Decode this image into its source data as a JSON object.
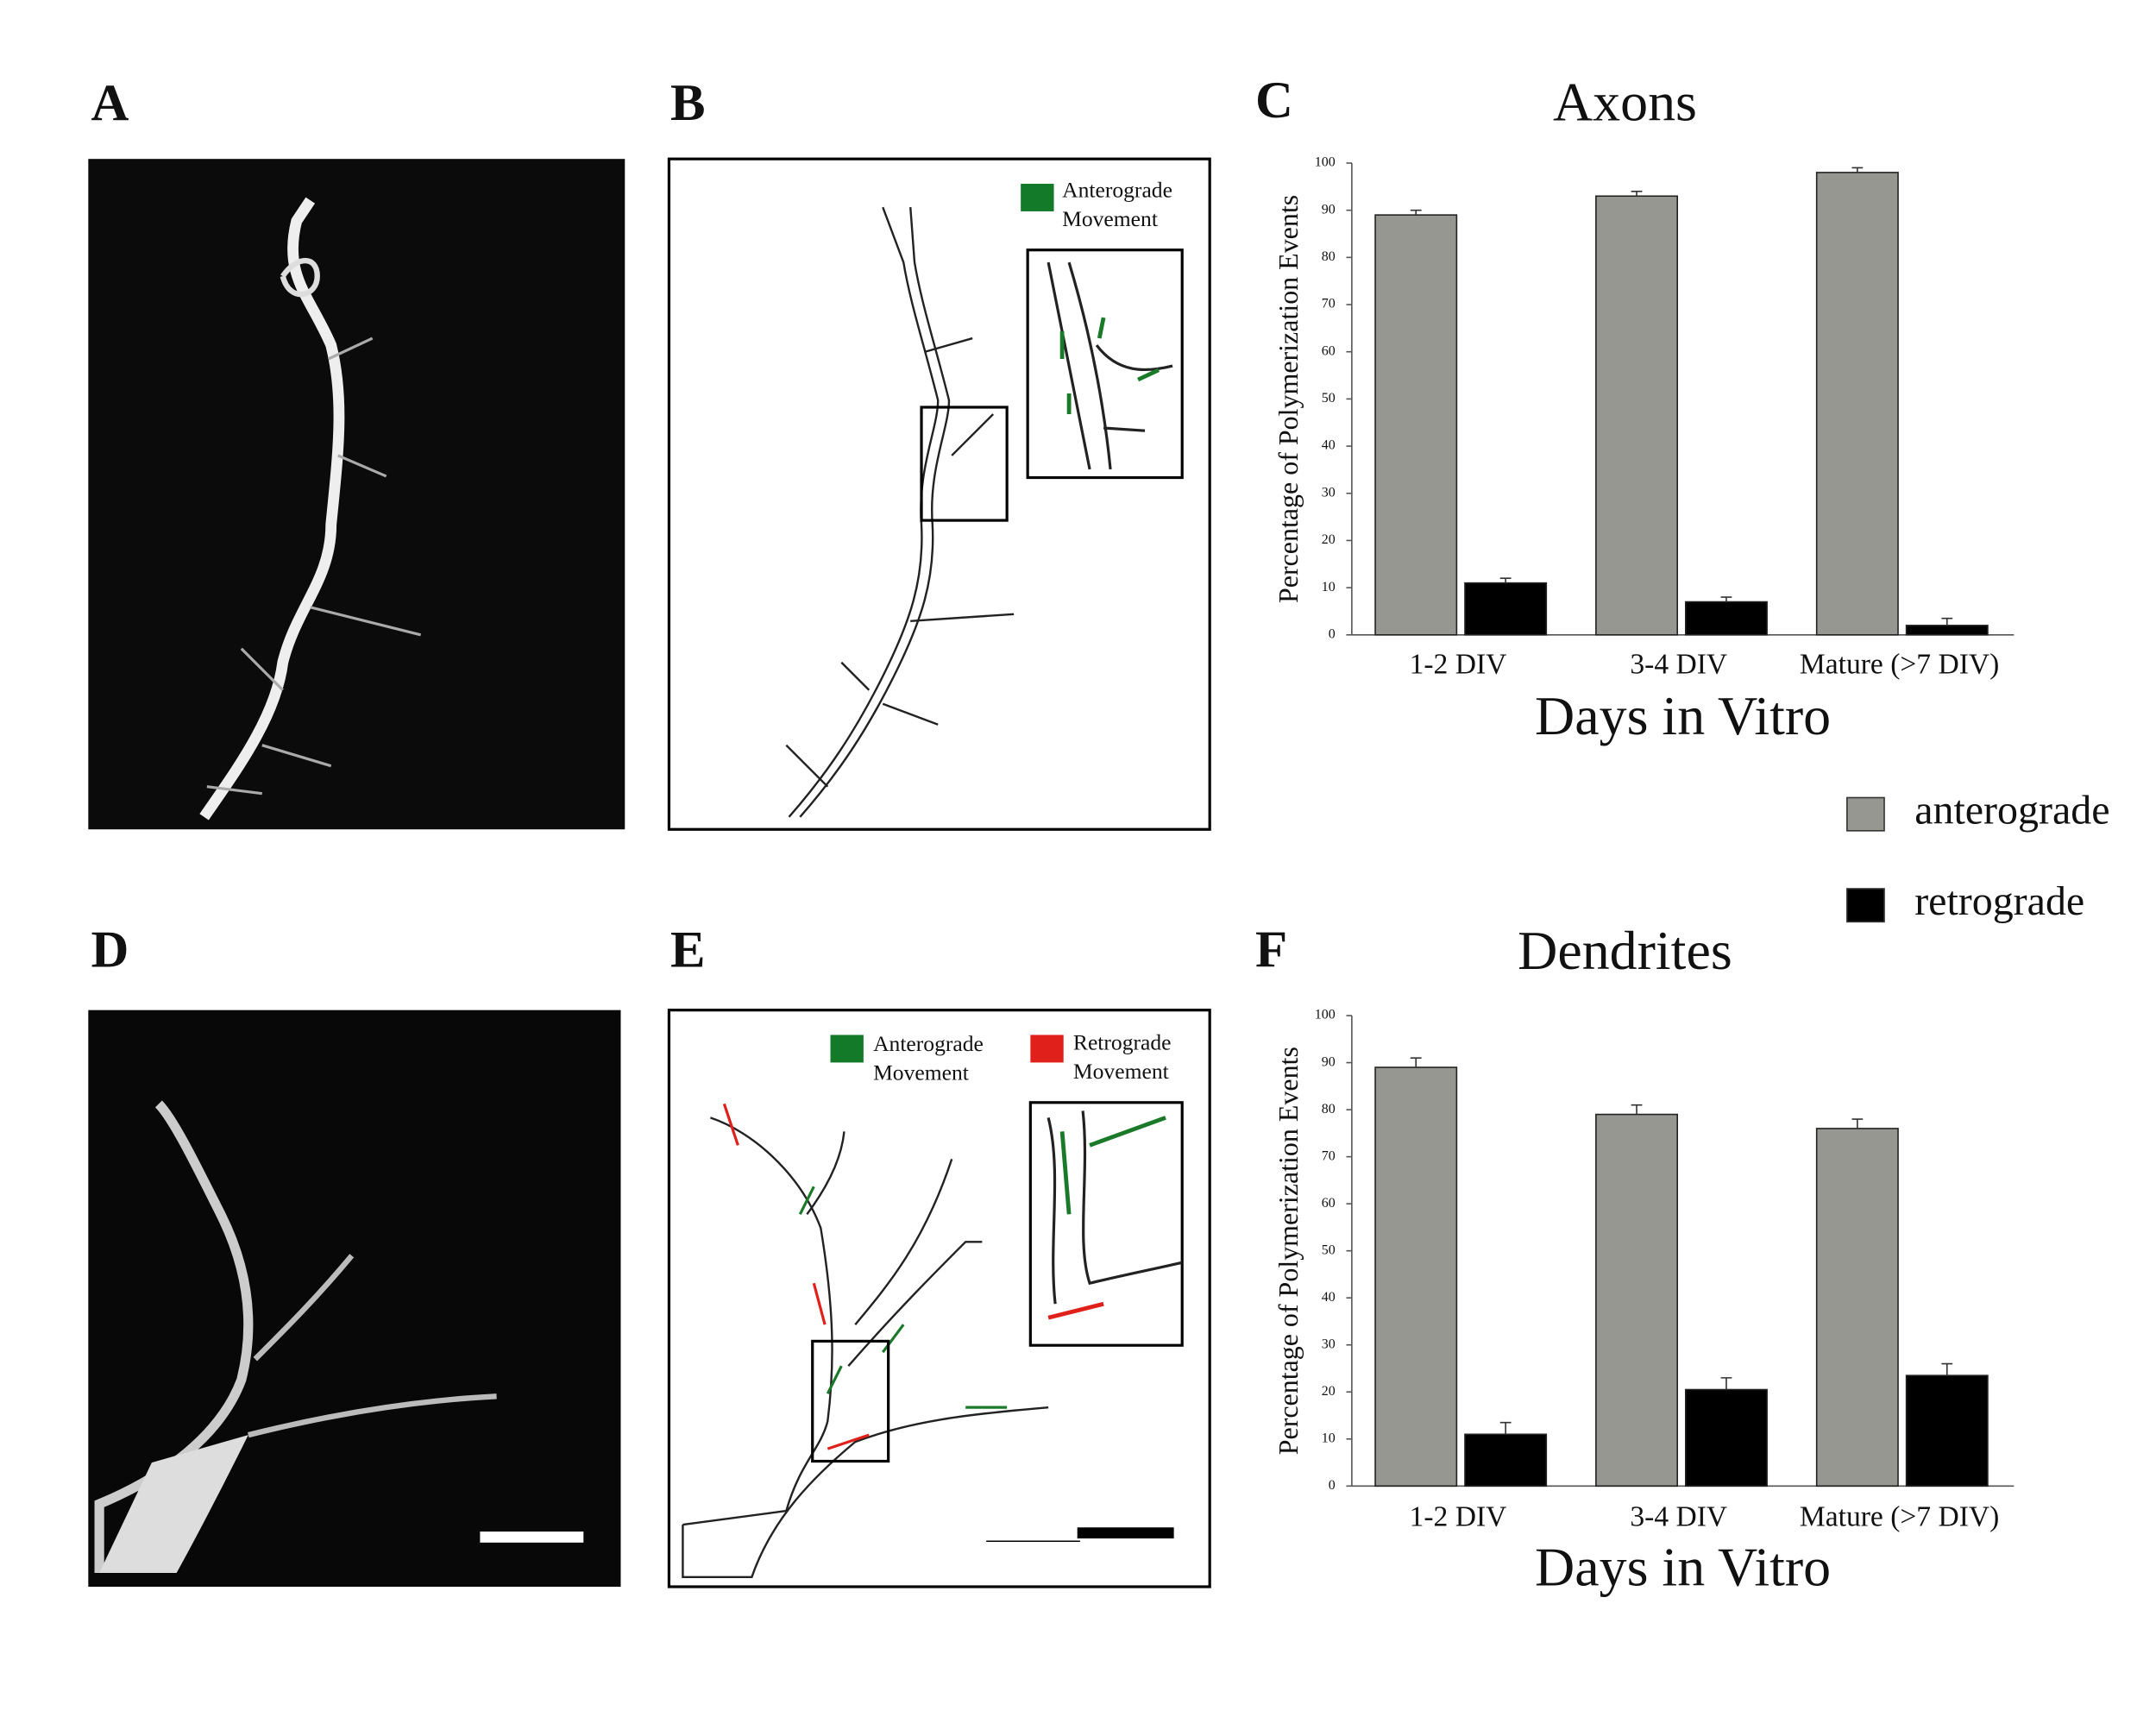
{
  "panels": [
    "A",
    "B",
    "C",
    "D",
    "E",
    "F"
  ],
  "diagram_b": {
    "legend": [
      "Anterograde",
      "Movement"
    ]
  },
  "diagram_e": {
    "legend_green": [
      "Anterograde",
      "Movement"
    ],
    "legend_red": [
      "Retrograde",
      "Movement"
    ]
  },
  "chart_data": [
    {
      "type": "bar",
      "title": "Axons",
      "x_label": "Days in Vitro",
      "y_label": "Percentage of Polymerization Events",
      "categories": [
        "1-2 DIV",
        "3-4 DIV",
        "Mature (>7 DIV)"
      ],
      "series": [
        {
          "name": "anterograde",
          "color": "#979792",
          "values": [
            89,
            93,
            98
          ],
          "errors": [
            1,
            1,
            1
          ]
        },
        {
          "name": "retrograde",
          "color": "#000000",
          "values": [
            11,
            7,
            2
          ],
          "errors": [
            1,
            1,
            1.5
          ]
        }
      ],
      "ylim": [
        0,
        100
      ],
      "yticks": [
        0,
        10,
        20,
        30,
        40,
        50,
        60,
        70,
        80,
        90,
        100
      ]
    },
    {
      "type": "bar",
      "title": "Dendrites",
      "x_label": "Days in Vitro",
      "y_label": "Percentage of Polymerization Events",
      "categories": [
        "1-2 DIV",
        "3-4 DIV",
        "Mature (>7 DIV)"
      ],
      "series": [
        {
          "color": "#979792",
          "values": [
            89,
            79,
            76
          ],
          "errors": [
            2,
            2,
            2
          ]
        },
        {
          "color": "#000000",
          "values": [
            11,
            20.5,
            23.5
          ],
          "errors": [
            2.5,
            2.5,
            2.5
          ]
        }
      ],
      "ylim": [
        0,
        100
      ],
      "yticks": [
        0,
        10,
        20,
        30,
        40,
        50,
        60,
        70,
        80,
        90,
        100
      ]
    }
  ]
}
